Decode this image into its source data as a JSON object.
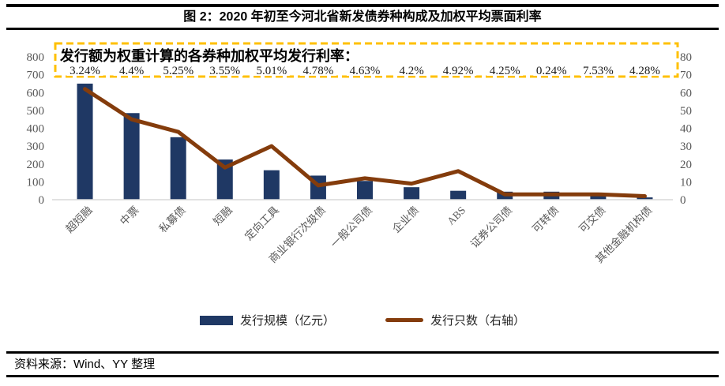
{
  "header": {
    "title": "图 2：2020 年初至今河北省新发债券种构成及加权平均票面利率"
  },
  "chart_data": {
    "type": "bar",
    "subtype": "bar-line-combo",
    "categories": [
      "超短融",
      "中票",
      "私募债",
      "短融",
      "定向工具",
      "商业银行次级债",
      "一般公司债",
      "企业债",
      "ABS",
      "证券公司债",
      "可转债",
      "可交债",
      "其他金融机构债"
    ],
    "series": [
      {
        "name": "发行规模（亿元）",
        "type": "bar",
        "axis": "left",
        "color": "#1F3864",
        "values": [
          650,
          485,
          350,
          225,
          165,
          135,
          105,
          70,
          50,
          45,
          45,
          20,
          13
        ]
      },
      {
        "name": "发行只数（右轴）",
        "type": "line",
        "axis": "right",
        "color": "#843C0C",
        "values": [
          62,
          45,
          38,
          18,
          30,
          8,
          12,
          9,
          16,
          3,
          3,
          3,
          2
        ]
      }
    ],
    "left_axis": {
      "min": 0,
      "max": 800,
      "ticks": [
        800,
        700,
        600,
        500,
        400,
        300,
        200,
        100,
        0
      ]
    },
    "right_axis": {
      "min": 0,
      "max": 80,
      "ticks": [
        80,
        70,
        60,
        50,
        40,
        30,
        20,
        10,
        0
      ]
    },
    "annotation": {
      "title": "发行额为权重计算的各券种加权平均发行利率：",
      "rates": [
        "3.24%",
        "4.4%",
        "5.25%",
        "3.55%",
        "5.01%",
        "4.78%",
        "4.63%",
        "4.2%",
        "4.92%",
        "4.25%",
        "0.24%",
        "7.53%",
        "4.28%"
      ],
      "border_color": "#FFC000"
    },
    "grid": false,
    "legend_position": "bottom",
    "baseline_color": "#D9D9D9",
    "title": "2020 年初至今河北省新发债券种构成及加权平均票面利率",
    "xlabel": "",
    "ylabel": ""
  },
  "legend": {
    "bar_label": "发行规模（亿元）",
    "line_label": "发行只数（右轴）"
  },
  "footer": {
    "source": "资料来源：Wind、YY 整理"
  }
}
